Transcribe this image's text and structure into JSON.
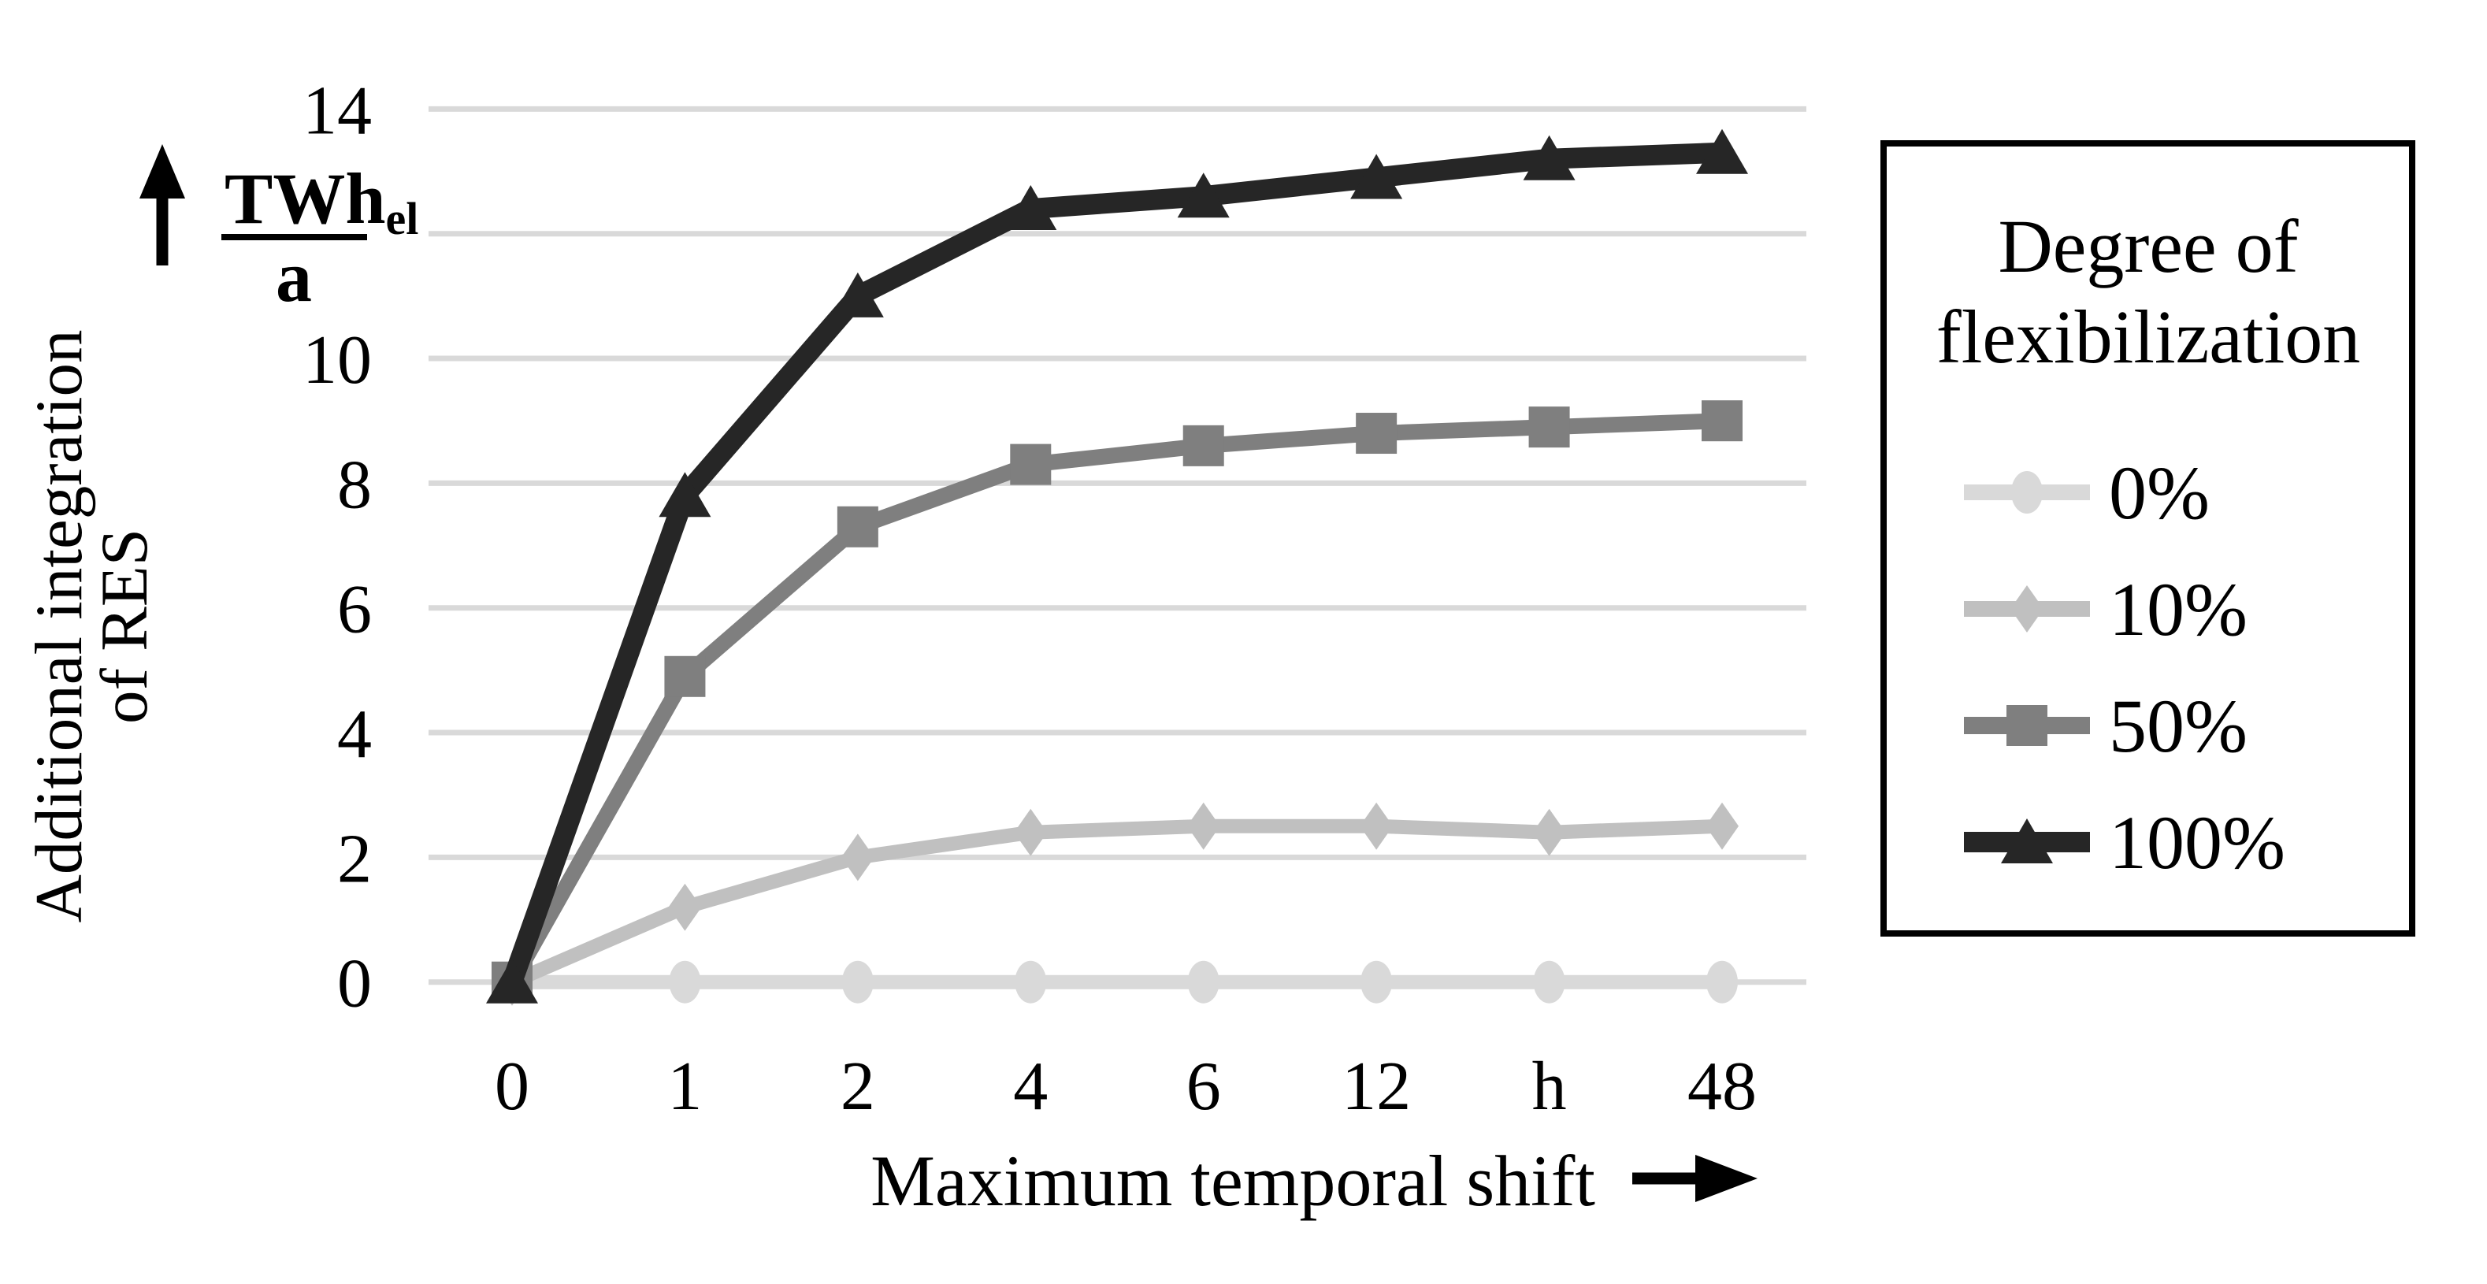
{
  "figure": {
    "background": "#ffffff",
    "text_color": "#000000"
  },
  "chart_data": {
    "type": "line",
    "title": "",
    "categories": [
      "0",
      "1",
      "2",
      "4",
      "6",
      "12",
      "h",
      "48"
    ],
    "series": [
      {
        "name": "0%",
        "marker": "circle",
        "color": "#d9d9d9",
        "line_width": 18,
        "values": [
          0,
          0,
          0,
          0,
          0,
          0,
          0,
          0
        ]
      },
      {
        "name": "10%",
        "marker": "diamond",
        "color": "#c0c0c0",
        "line_width": 18,
        "values": [
          0,
          1.2,
          2.0,
          2.4,
          2.5,
          2.5,
          2.4,
          2.5
        ]
      },
      {
        "name": "50%",
        "marker": "square",
        "color": "#7f7f7f",
        "line_width": 20,
        "values": [
          0,
          4.9,
          7.3,
          8.3,
          8.6,
          8.8,
          8.9,
          9.0
        ]
      },
      {
        "name": "100%",
        "marker": "triangle",
        "color": "#262626",
        "line_width": 26,
        "values": [
          0,
          7.8,
          11.0,
          12.4,
          12.6,
          12.9,
          13.2,
          13.3
        ]
      }
    ],
    "xlabel": "Maximum temporal shift",
    "ylabel_lines": [
      "Additional integration",
      "of RES"
    ],
    "y_unit": {
      "numerator": "TWh",
      "numerator_sub": "el",
      "denominator": "a"
    },
    "y_unit_position_value": 12,
    "y_ticks": [
      {
        "label": "14",
        "value": 14
      },
      {
        "label": "10",
        "value": 10
      },
      {
        "label": "8",
        "value": 8
      },
      {
        "label": "6",
        "value": 6
      },
      {
        "label": "4",
        "value": 4
      },
      {
        "label": "2",
        "value": 2
      },
      {
        "label": "0",
        "value": 0
      }
    ],
    "ylim": [
      0,
      14
    ],
    "grid": {
      "show": true,
      "color": "#d9d9d9",
      "values": [
        0,
        2,
        4,
        6,
        8,
        10,
        12,
        14
      ]
    },
    "legend": {
      "position": "right",
      "border_color": "#000000",
      "title_lines": [
        "Degree of",
        "flexibilization"
      ],
      "entries": [
        {
          "label": "0%",
          "marker": "circle",
          "color": "#d9d9d9",
          "line_width": 20
        },
        {
          "label": "10%",
          "marker": "diamond",
          "color": "#c0c0c0",
          "line_width": 20
        },
        {
          "label": "50%",
          "marker": "square",
          "color": "#7f7f7f",
          "line_width": 22
        },
        {
          "label": "100%",
          "marker": "triangle",
          "color": "#262626",
          "line_width": 26
        }
      ]
    }
  }
}
